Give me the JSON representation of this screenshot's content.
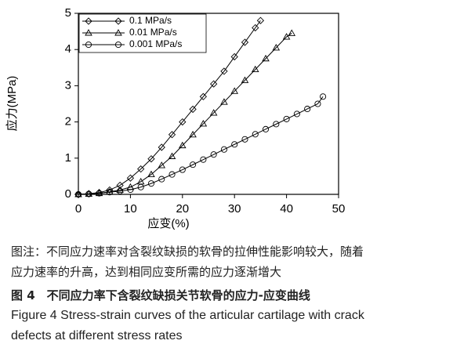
{
  "chart_data": {
    "type": "line",
    "x_label": "应变(%)",
    "y_label": "应力(MPa)",
    "xlim": [
      0,
      50
    ],
    "xticks": [
      0,
      10,
      20,
      30,
      40,
      50
    ],
    "ylim": [
      0,
      5
    ],
    "yticks": [
      0,
      1,
      2,
      3,
      4,
      5
    ],
    "series": [
      {
        "name": "0.1 MPa/s",
        "color": "#000000",
        "marker": "diamond",
        "x": [
          0,
          2,
          4,
          6,
          8,
          10,
          12,
          14,
          16,
          18,
          20,
          22,
          24,
          26,
          28,
          30,
          32,
          34,
          35
        ],
        "values": [
          0,
          0.02,
          0.05,
          0.12,
          0.25,
          0.45,
          0.7,
          0.98,
          1.3,
          1.65,
          2.0,
          2.35,
          2.7,
          3.05,
          3.4,
          3.8,
          4.2,
          4.6,
          4.8
        ]
      },
      {
        "name": "0.01 MPa/s",
        "color": "#000000",
        "marker": "triangle",
        "x": [
          0,
          2,
          4,
          6,
          8,
          10,
          12,
          14,
          16,
          18,
          20,
          22,
          24,
          26,
          28,
          30,
          32,
          34,
          36,
          38,
          40,
          41
        ],
        "values": [
          0,
          0.01,
          0.03,
          0.07,
          0.12,
          0.2,
          0.35,
          0.55,
          0.8,
          1.05,
          1.35,
          1.65,
          1.95,
          2.25,
          2.55,
          2.85,
          3.15,
          3.45,
          3.75,
          4.05,
          4.35,
          4.45
        ]
      },
      {
        "name": "0.001 MPa/s",
        "color": "#000000",
        "marker": "circle",
        "x": [
          0,
          2,
          4,
          6,
          8,
          10,
          12,
          14,
          16,
          18,
          20,
          22,
          24,
          26,
          28,
          30,
          32,
          34,
          36,
          38,
          40,
          42,
          44,
          46,
          47
        ],
        "values": [
          0,
          0.01,
          0.03,
          0.06,
          0.09,
          0.13,
          0.2,
          0.3,
          0.42,
          0.55,
          0.68,
          0.82,
          0.96,
          1.1,
          1.24,
          1.38,
          1.52,
          1.66,
          1.8,
          1.94,
          2.08,
          2.22,
          2.36,
          2.5,
          2.7
        ]
      }
    ],
    "legend": "upper-left"
  },
  "caption": {
    "note": [
      "图注：不同应力速率对含裂纹缺损的软骨的拉伸性能影响较大，随着",
      "应力速率的升高，达到相同应变所需的应力逐渐增大"
    ],
    "title_cn": "图 4　不同应力率下含裂纹缺损关节软骨的应力-应变曲线",
    "title_en": [
      "Figure 4    Stress-strain curves of the articular cartilage with crack",
      "defects at different stress rates"
    ]
  }
}
